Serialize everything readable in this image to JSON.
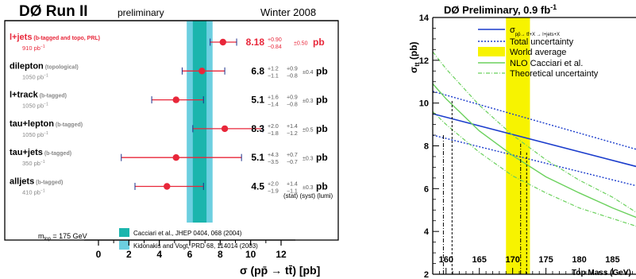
{
  "colors": {
    "band_inner": "#1bb5ad",
    "band_outer": "#6ccfe0",
    "marker": "#e8273a",
    "highlight_text": "#e8273a",
    "sub_text": "#888888",
    "central_line": "#1a3ccc",
    "total_uncertainty": "#1a3ccc",
    "world_average": "#f7f300",
    "nlo": "#6bd15d",
    "theory_uncertainty": "#6bd15d"
  },
  "chart_data": [
    {
      "type": "scatter",
      "title": "DØ Run II",
      "subtitle": "preliminary",
      "date_label": "Winter 2008",
      "xlabel": "σ (pp̄ → tt̄) [pb]",
      "xlim": [
        0,
        13
      ],
      "xticks": [
        0,
        2,
        4,
        6,
        8,
        10,
        12
      ],
      "bands": [
        {
          "label": "Cacciari et al., JHEP 0404, 068 (2004)",
          "low": 6.2,
          "central": 6.65,
          "high": 7.1
        },
        {
          "label": "Kidonakis and Vogt, PRD 68, 114014 (2003)",
          "low": 5.8,
          "high": 7.5
        }
      ],
      "note": "m",
      "note_sub": "top",
      "note_rest": " = 175 GeV",
      "channels": [
        {
          "name": "l+jets",
          "tag": "(b-tagged and topo, PRL)",
          "lumi": "910 pb",
          "value": 8.18,
          "value_text": "8.18",
          "stat_up": "+0.90",
          "stat_down": "−0.84",
          "syst": "",
          "syst_up": "",
          "syst_down": "",
          "lumi_err": "±0.50",
          "err_low": 7.34,
          "err_high": 9.08,
          "highlight": true
        },
        {
          "name": "dilepton",
          "tag": "(topological)",
          "lumi": "1050 pb",
          "value": 6.8,
          "value_text": "6.8",
          "stat_up": "+1.2",
          "stat_down": "−1.1",
          "syst_up": "+0.9",
          "syst_down": "−0.8",
          "lumi_err": "±0.4",
          "err_low": 5.5,
          "err_high": 8.3,
          "highlight": false
        },
        {
          "name": "l+track",
          "tag": "(b-tagged)",
          "lumi": "1050 pb",
          "value": 5.1,
          "value_text": "5.1",
          "stat_up": "+1.6",
          "stat_down": "−1.4",
          "syst_up": "+0.9",
          "syst_down": "−0.8",
          "lumi_err": "±0.3",
          "err_low": 3.5,
          "err_high": 6.9,
          "highlight": false
        },
        {
          "name": "tau+lepton",
          "tag": "(b-tagged)",
          "lumi": "1050 pb",
          "value": 8.3,
          "value_text": "8.3",
          "stat_up": "+2.0",
          "stat_down": "−1.8",
          "syst_up": "+1.4",
          "syst_down": "−1.2",
          "lumi_err": "±0.5",
          "err_low": 6.2,
          "err_high": 10.8,
          "highlight": false
        },
        {
          "name": "tau+jets",
          "tag": "(b-tagged)",
          "lumi": "350 pb",
          "value": 5.1,
          "value_text": "5.1",
          "stat_up": "+4.3",
          "stat_down": "−3.5",
          "syst_up": "+0.7",
          "syst_down": "−0.7",
          "lumi_err": "±0.3",
          "err_low": 1.5,
          "err_high": 9.4,
          "highlight": false
        },
        {
          "name": "alljets",
          "tag": "(b-tagged)",
          "lumi": "410 pb",
          "value": 4.5,
          "value_text": "4.5",
          "stat_up": "+2.0",
          "stat_down": "−1.9",
          "syst_up": "+1.4",
          "syst_down": "−1.1",
          "lumi_err": "±0.3",
          "err_low": 2.4,
          "err_high": 6.9,
          "highlight": false
        }
      ],
      "unit": "pb",
      "lumi_unit_sup": "−1",
      "error_legend": "(stat) (syst) (lumi)"
    },
    {
      "type": "line",
      "title": "DØ Preliminary, 0.9 fb",
      "title_sup": "-1",
      "xlabel": "Top Mass (GeV)",
      "ylabel": "σ",
      "ylabel_sub": "tt",
      "ylabel_unit": " (pb)",
      "xlim": [
        158,
        189
      ],
      "ylim": [
        2,
        14
      ],
      "xticks": [
        160,
        165,
        170,
        175,
        180,
        185
      ],
      "yticks": [
        2,
        4,
        6,
        8,
        10,
        12,
        14
      ],
      "legend": [
        {
          "label": "σ",
          "sub": "pp̄→ tt̄+X → l+jets+X",
          "style": "central"
        },
        {
          "label": "Total uncertainty",
          "style": "total"
        },
        {
          "label": "World average",
          "style": "world"
        },
        {
          "label": "NLO Cacciari et al.",
          "style": "nlo"
        },
        {
          "label": "Theoretical uncertainty",
          "style": "theory"
        }
      ],
      "world_average_band": [
        169.0,
        172.6
      ],
      "series": [
        {
          "name": "σ",
          "x": [
            158,
            189
          ],
          "y": [
            9.5,
            7.0
          ],
          "style": "central"
        },
        {
          "name": "Total uncertainty",
          "x": [
            158,
            189
          ],
          "y": [
            10.55,
            7.8
          ],
          "style": "total"
        },
        {
          "name": "Total uncertainty",
          "x": [
            158,
            189
          ],
          "y": [
            8.5,
            6.1
          ],
          "style": "total"
        },
        {
          "name": "NLO Cacciari et al.",
          "x": [
            158,
            160,
            165,
            170,
            175,
            180,
            185,
            189
          ],
          "y": [
            10.9,
            10.2,
            8.7,
            7.55,
            6.55,
            5.8,
            5.1,
            4.6
          ],
          "style": "nlo"
        },
        {
          "name": "Theoretical uncertainty",
          "x": [
            158,
            160,
            165,
            170,
            175,
            180,
            185,
            189
          ],
          "y": [
            12.4,
            11.6,
            9.9,
            8.5,
            7.35,
            6.4,
            5.6,
            4.8
          ],
          "style": "theory"
        },
        {
          "name": "Theoretical uncertainty",
          "x": [
            158,
            160,
            165,
            170,
            175,
            180,
            185,
            189
          ],
          "y": [
            9.6,
            9.0,
            7.7,
            6.6,
            5.8,
            5.1,
            4.6,
            4.2
          ],
          "style": "theory"
        }
      ],
      "vertical_markers": [
        {
          "x": 159.6,
          "y_top": 8.55,
          "style": "dashdot"
        },
        {
          "x": 160.9,
          "y_top": 10.1,
          "style": "dashed"
        },
        {
          "x": 171.2,
          "y_top": 8.1,
          "style": "dashdot"
        },
        {
          "x": 172.1,
          "y_top": 7.7,
          "style": "dashed"
        }
      ]
    }
  ]
}
